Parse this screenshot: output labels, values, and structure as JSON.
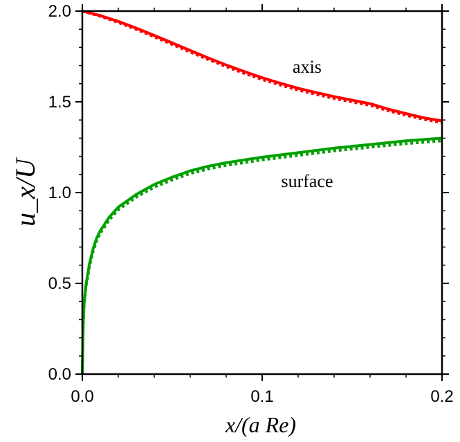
{
  "chart_data": {
    "type": "line",
    "xlabel": "x/(a Re)",
    "ylabel": "u_x/U",
    "xlim": [
      0,
      0.2
    ],
    "ylim": [
      0,
      2.0
    ],
    "x_ticks": [
      0.0,
      0.1,
      0.2
    ],
    "x_tick_labels": [
      "0.0",
      "0.1",
      "0.2"
    ],
    "y_ticks": [
      0.0,
      0.5,
      1.0,
      1.5,
      2.0
    ],
    "y_tick_labels": [
      "0.0",
      "0.5",
      "1.0",
      "1.5",
      "2.0"
    ],
    "grid": false,
    "annotations": [
      {
        "text": "axis",
        "x": 0.125,
        "y": 1.66
      },
      {
        "text": "surface",
        "x": 0.125,
        "y": 1.03
      }
    ],
    "series": [
      {
        "color": "#ff0000",
        "style": "solid",
        "x": [
          0.0,
          0.01,
          0.02,
          0.03,
          0.04,
          0.05,
          0.06,
          0.07,
          0.08,
          0.09,
          0.1,
          0.11,
          0.12,
          0.13,
          0.14,
          0.15,
          0.16,
          0.17,
          0.18,
          0.19,
          0.2
        ],
        "y": [
          2.0,
          1.975,
          1.943,
          1.906,
          1.866,
          1.825,
          1.783,
          1.742,
          1.703,
          1.667,
          1.633,
          1.603,
          1.575,
          1.551,
          1.529,
          1.509,
          1.49,
          1.46,
          1.435,
          1.412,
          1.395
        ]
      },
      {
        "color": "#ff0000",
        "style": "dotted",
        "x": [
          0.0,
          0.01,
          0.02,
          0.03,
          0.04,
          0.05,
          0.06,
          0.07,
          0.08,
          0.09,
          0.1,
          0.11,
          0.12,
          0.13,
          0.14,
          0.15,
          0.16,
          0.17,
          0.18,
          0.19,
          0.2
        ],
        "y": [
          2.0,
          1.971,
          1.937,
          1.899,
          1.858,
          1.816,
          1.774,
          1.733,
          1.694,
          1.657,
          1.623,
          1.593,
          1.565,
          1.541,
          1.519,
          1.499,
          1.481,
          1.451,
          1.426,
          1.403,
          1.385
        ]
      },
      {
        "color": "#00a000",
        "style": "solid",
        "x": [
          0.0,
          0.0005,
          0.001,
          0.002,
          0.004,
          0.006,
          0.008,
          0.01,
          0.015,
          0.02,
          0.03,
          0.04,
          0.05,
          0.06,
          0.07,
          0.08,
          0.09,
          0.1,
          0.12,
          0.14,
          0.16,
          0.18,
          0.2
        ],
        "y": [
          0.0,
          0.28,
          0.39,
          0.49,
          0.61,
          0.69,
          0.75,
          0.79,
          0.865,
          0.92,
          0.99,
          1.045,
          1.085,
          1.12,
          1.145,
          1.165,
          1.18,
          1.195,
          1.22,
          1.245,
          1.265,
          1.285,
          1.3
        ]
      },
      {
        "color": "#00a000",
        "style": "dotted",
        "x": [
          0.0,
          0.0005,
          0.001,
          0.002,
          0.004,
          0.006,
          0.008,
          0.01,
          0.015,
          0.02,
          0.03,
          0.04,
          0.05,
          0.06,
          0.07,
          0.08,
          0.09,
          0.1,
          0.12,
          0.14,
          0.16,
          0.18,
          0.2
        ],
        "y": [
          0.0,
          0.27,
          0.375,
          0.475,
          0.595,
          0.675,
          0.735,
          0.775,
          0.85,
          0.905,
          0.975,
          1.03,
          1.07,
          1.105,
          1.13,
          1.15,
          1.165,
          1.18,
          1.205,
          1.23,
          1.25,
          1.27,
          1.285
        ]
      }
    ]
  }
}
